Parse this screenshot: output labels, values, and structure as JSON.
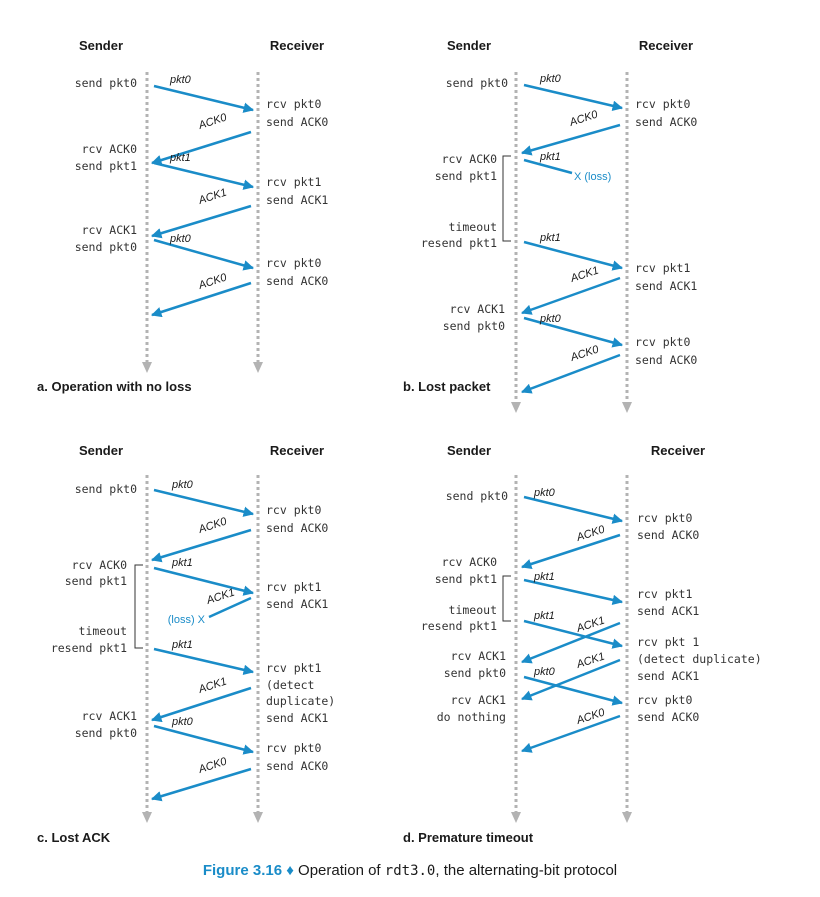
{
  "figure": {
    "label": "Figure 3.16",
    "bullet": "♦",
    "text_before": "Operation of",
    "code": "rdt3.0",
    "text_after": ", the alternating-bit protocol"
  },
  "panels": [
    {
      "id": "a",
      "caption": "a. Operation with no loss",
      "sender_title": "Sender",
      "receiver_title": "Receiver",
      "messages": [
        {
          "label": "pkt0",
          "dir": "to-receiver"
        },
        {
          "label": "ACK0",
          "dir": "to-sender"
        },
        {
          "label": "pkt1",
          "dir": "to-receiver"
        },
        {
          "label": "ACK1",
          "dir": "to-sender"
        },
        {
          "label": "pkt0",
          "dir": "to-receiver"
        },
        {
          "label": "ACK0",
          "dir": "to-sender"
        }
      ],
      "events": [
        {
          "side": "sender",
          "lines": [
            "send pkt0"
          ]
        },
        {
          "side": "receiver",
          "lines": [
            "rcv pkt0",
            "send ACK0"
          ]
        },
        {
          "side": "sender",
          "lines": [
            "rcv ACK0",
            "send pkt1"
          ]
        },
        {
          "side": "receiver",
          "lines": [
            "rcv pkt1",
            "send ACK1"
          ]
        },
        {
          "side": "sender",
          "lines": [
            "rcv ACK1",
            "send pkt0"
          ]
        },
        {
          "side": "receiver",
          "lines": [
            "rcv pkt0",
            "send ACK0"
          ]
        }
      ]
    },
    {
      "id": "b",
      "caption": "b. Lost packet",
      "sender_title": "Sender",
      "receiver_title": "Receiver",
      "loss_label": "X (loss)",
      "messages": [
        {
          "label": "pkt0",
          "dir": "to-receiver"
        },
        {
          "label": "ACK0",
          "dir": "to-sender"
        },
        {
          "label": "pkt1",
          "dir": "lost"
        },
        {
          "label": "pkt1",
          "dir": "to-receiver"
        },
        {
          "label": "ACK1",
          "dir": "to-sender"
        },
        {
          "label": "pkt0",
          "dir": "to-receiver"
        },
        {
          "label": "ACK0",
          "dir": "to-sender"
        }
      ],
      "events": [
        {
          "side": "sender",
          "lines": [
            "send pkt0"
          ]
        },
        {
          "side": "receiver",
          "lines": [
            "rcv pkt0",
            "send ACK0"
          ]
        },
        {
          "side": "sender",
          "lines": [
            "rcv ACK0",
            "send pkt1"
          ]
        },
        {
          "side": "sender",
          "lines": [
            "timeout",
            "resend pkt1"
          ]
        },
        {
          "side": "receiver",
          "lines": [
            "rcv pkt1",
            "send ACK1"
          ]
        },
        {
          "side": "sender",
          "lines": [
            "rcv ACK1",
            "send pkt0"
          ]
        },
        {
          "side": "receiver",
          "lines": [
            "rcv pkt0",
            "send ACK0"
          ]
        }
      ]
    },
    {
      "id": "c",
      "caption": "c. Lost ACK",
      "sender_title": "Sender",
      "receiver_title": "Receiver",
      "loss_label": "(loss) X",
      "messages": [
        {
          "label": "pkt0",
          "dir": "to-receiver"
        },
        {
          "label": "ACK0",
          "dir": "to-sender"
        },
        {
          "label": "pkt1",
          "dir": "to-receiver"
        },
        {
          "label": "ACK1",
          "dir": "lost"
        },
        {
          "label": "pkt1",
          "dir": "to-receiver"
        },
        {
          "label": "ACK1",
          "dir": "to-sender"
        },
        {
          "label": "pkt0",
          "dir": "to-receiver"
        },
        {
          "label": "ACK0",
          "dir": "to-sender"
        }
      ],
      "events": [
        {
          "side": "sender",
          "lines": [
            "send pkt0"
          ]
        },
        {
          "side": "receiver",
          "lines": [
            "rcv pkt0",
            "send ACK0"
          ]
        },
        {
          "side": "sender",
          "lines": [
            "rcv ACK0",
            "send pkt1"
          ]
        },
        {
          "side": "receiver",
          "lines": [
            "rcv pkt1",
            "send ACK1"
          ]
        },
        {
          "side": "sender",
          "lines": [
            "timeout",
            "resend pkt1"
          ]
        },
        {
          "side": "receiver",
          "lines": [
            "rcv pkt1",
            "(detect",
            "duplicate)",
            "send ACK1"
          ]
        },
        {
          "side": "sender",
          "lines": [
            "rcv ACK1",
            "send pkt0"
          ]
        },
        {
          "side": "receiver",
          "lines": [
            "rcv pkt0",
            "send ACK0"
          ]
        }
      ]
    },
    {
      "id": "d",
      "caption": "d. Premature timeout",
      "sender_title": "Sender",
      "receiver_title": "Receiver",
      "messages": [
        {
          "label": "pkt0",
          "dir": "to-receiver"
        },
        {
          "label": "ACK0",
          "dir": "to-sender"
        },
        {
          "label": "pkt1",
          "dir": "to-receiver"
        },
        {
          "label": "pkt1",
          "dir": "to-receiver"
        },
        {
          "label": "ACK1",
          "dir": "to-sender"
        },
        {
          "label": "ACK1",
          "dir": "to-sender"
        },
        {
          "label": "pkt0",
          "dir": "to-receiver"
        },
        {
          "label": "ACK0",
          "dir": "to-sender"
        }
      ],
      "events": [
        {
          "side": "sender",
          "lines": [
            "send pkt0"
          ]
        },
        {
          "side": "receiver",
          "lines": [
            "rcv pkt0",
            "send ACK0"
          ]
        },
        {
          "side": "sender",
          "lines": [
            "rcv ACK0",
            "send pkt1"
          ]
        },
        {
          "side": "receiver",
          "lines": [
            "rcv pkt1",
            "send ACK1"
          ]
        },
        {
          "side": "sender",
          "lines": [
            "timeout",
            "resend pkt1"
          ]
        },
        {
          "side": "receiver",
          "lines": [
            "rcv pkt 1",
            "(detect duplicate)",
            "send ACK1"
          ]
        },
        {
          "side": "sender",
          "lines": [
            "rcv ACK1",
            "send pkt0"
          ]
        },
        {
          "side": "sender",
          "lines": [
            "rcv ACK1",
            "do nothing"
          ]
        },
        {
          "side": "receiver",
          "lines": [
            "rcv pkt0",
            "send ACK0"
          ]
        }
      ]
    }
  ]
}
